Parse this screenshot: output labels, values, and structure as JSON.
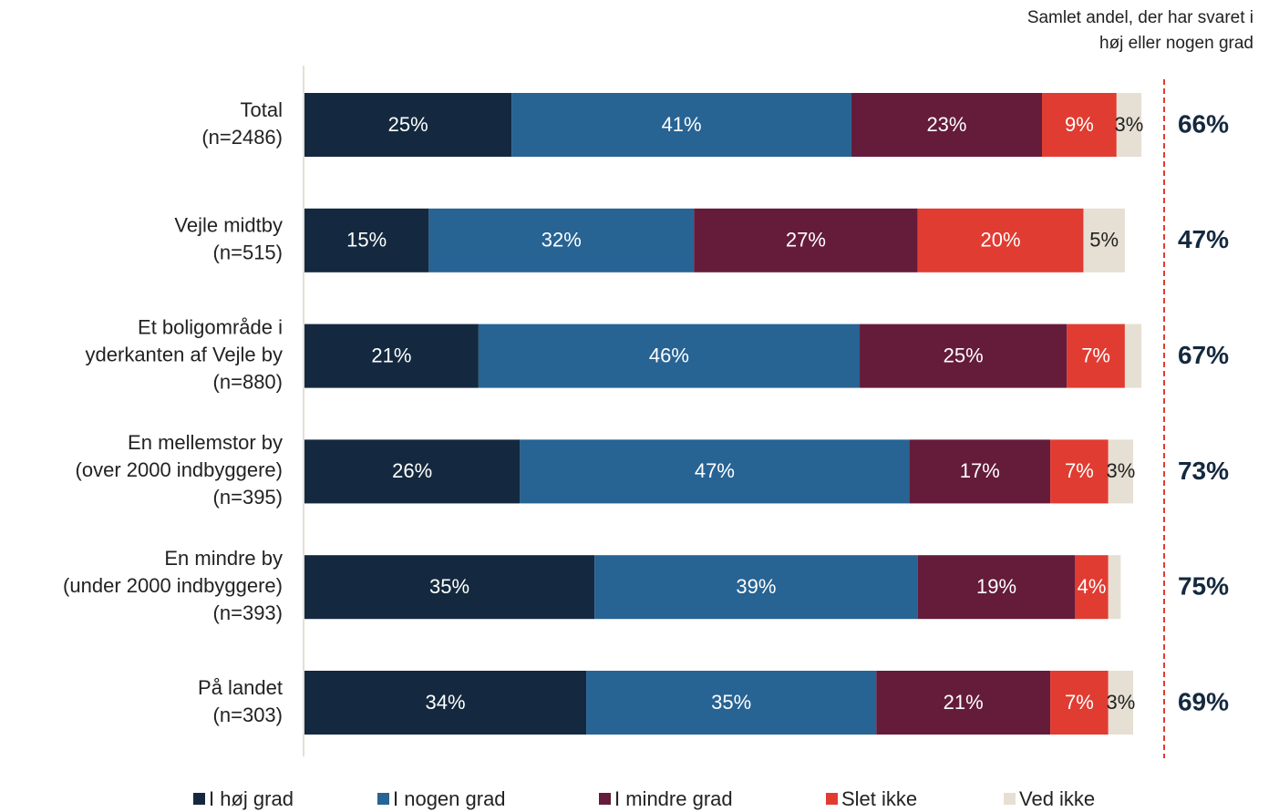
{
  "chart_data": {
    "type": "stacked-bar-horizontal",
    "categories": [
      [
        "Total",
        "(n=2486)"
      ],
      [
        "Vejle midtby",
        "(n=515)"
      ],
      [
        "Et boligområde i",
        "yderkanten af Vejle by",
        "(n=880)"
      ],
      [
        "En mellemstor by",
        "(over 2000 indbyggere)",
        "(n=395)"
      ],
      [
        "En mindre by",
        "(under 2000 indbyggere)",
        "(n=393)"
      ],
      [
        "På landet",
        "(n=303)"
      ]
    ],
    "xlim": [
      0,
      100
    ],
    "series": [
      {
        "name": "I høj grad",
        "color": "#14293f",
        "label_color": "#ffffff",
        "values": [
          25,
          15,
          21,
          26,
          35,
          34
        ],
        "value_labels": [
          "25%",
          "15%",
          "21%",
          "26%",
          "35%",
          "34%"
        ]
      },
      {
        "name": "I nogen grad",
        "color": "#276393",
        "label_color": "#ffffff",
        "values": [
          41,
          32,
          46,
          47,
          39,
          35
        ],
        "value_labels": [
          "41%",
          "32%",
          "46%",
          "47%",
          "39%",
          "35%"
        ]
      },
      {
        "name": "I mindre grad",
        "color": "#641c3a",
        "label_color": "#ffffff",
        "values": [
          23,
          27,
          25,
          17,
          19,
          21
        ],
        "value_labels": [
          "23%",
          "27%",
          "25%",
          "17%",
          "19%",
          "21%"
        ]
      },
      {
        "name": "Slet ikke",
        "color": "#e03c31",
        "label_color": "#ffffff",
        "values": [
          9,
          20,
          7,
          7,
          4,
          7
        ],
        "value_labels": [
          "9%",
          "20%",
          "7%",
          "7%",
          "4%",
          "7%"
        ]
      },
      {
        "name": "Ved ikke",
        "color": "#e6dfd3",
        "label_color": "#222222",
        "values": [
          3,
          5,
          2,
          3,
          1.5,
          3
        ],
        "value_labels": [
          "3%",
          "5%",
          null,
          "3%",
          null,
          "3%"
        ]
      }
    ],
    "totals": {
      "title": [
        "Samlet andel, der har svaret i",
        "høj eller nogen grad"
      ],
      "values": [
        66,
        47,
        67,
        73,
        75,
        69
      ],
      "value_labels": [
        "66%",
        "47%",
        "67%",
        "73%",
        "75%",
        "69%"
      ]
    }
  }
}
